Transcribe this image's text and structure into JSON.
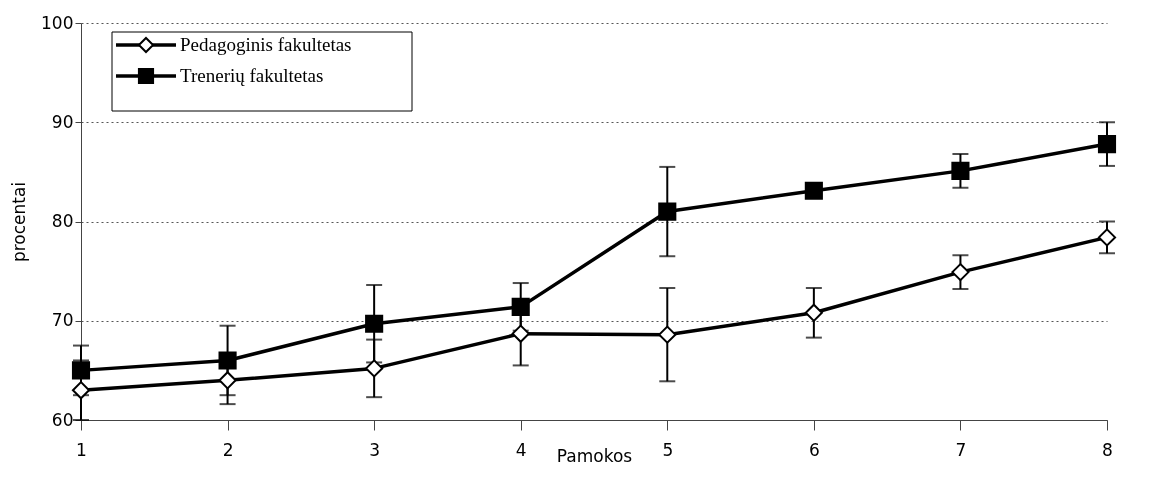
{
  "chart_data": {
    "type": "line",
    "xlabel": "Pamokos",
    "ylabel": "procentai",
    "x": [
      1,
      2,
      3,
      4,
      5,
      6,
      7,
      8
    ],
    "series": [
      {
        "name": "Pedagoginis fakultetas",
        "color": "#000000",
        "marker": "diamond",
        "values": [
          63.0,
          64.0,
          65.2,
          68.7,
          68.6,
          70.8,
          74.9,
          78.4
        ],
        "errors": [
          3.0,
          2.4,
          2.9,
          3.2,
          4.7,
          2.5,
          1.7,
          1.6
        ]
      },
      {
        "name": "Trenerių fakultetas",
        "color": "#000000",
        "marker": "square",
        "values": [
          65.0,
          66.0,
          69.7,
          71.4,
          81.0,
          83.1,
          85.1,
          87.8
        ],
        "errors": [
          2.5,
          3.5,
          3.9,
          2.4,
          4.5,
          null,
          1.7,
          2.2
        ]
      }
    ],
    "xlim": [
      1,
      8
    ],
    "xticks": [
      1,
      2,
      3,
      4,
      5,
      6,
      7,
      8
    ],
    "ylim": [
      60,
      100
    ],
    "yticks": [
      60,
      70,
      80,
      90,
      100
    ],
    "grid": "y",
    "legend": "top left",
    "line_style": "solid"
  }
}
